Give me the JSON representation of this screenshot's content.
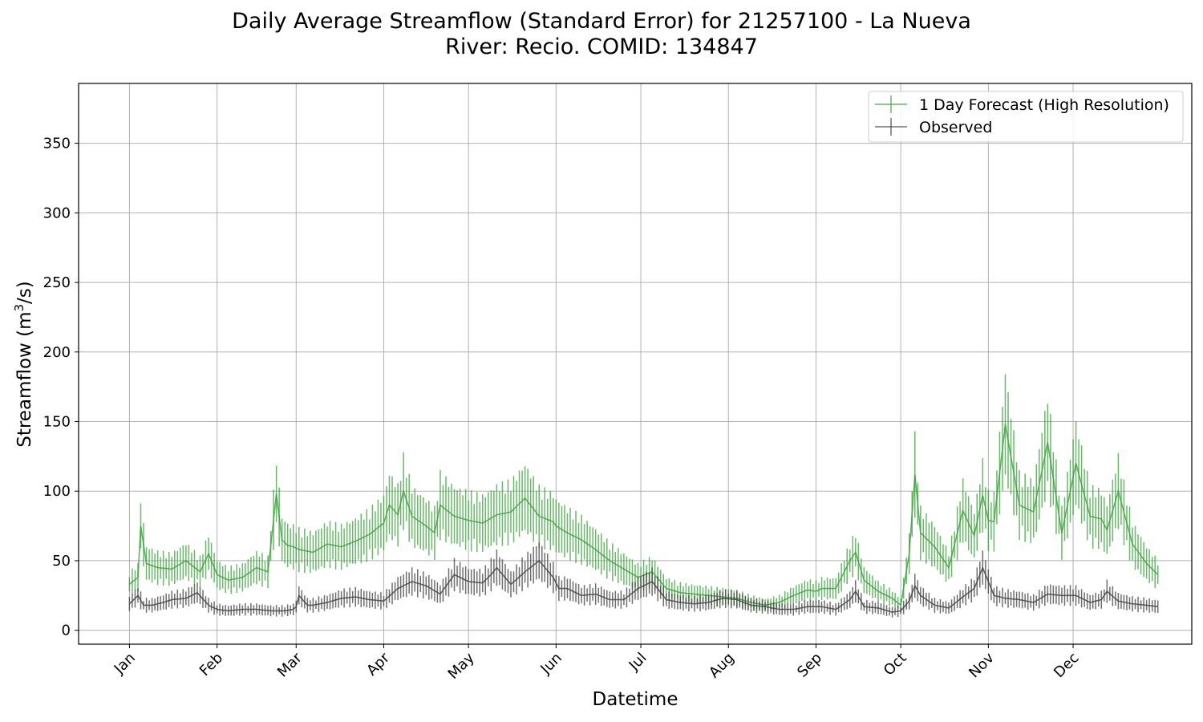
{
  "chart_data": {
    "type": "line",
    "title": "Daily Average Streamflow (Standard Error) for 21257100 - La Nueva",
    "subtitle": "River: Recio. COMID: 134847",
    "xlabel": "Datetime",
    "ylabel_prefix": "Streamflow (m",
    "ylabel_sup": "3",
    "ylabel_suffix": "/s)",
    "ylim": [
      -10,
      393
    ],
    "xlim_day": [
      -18,
      376
    ],
    "yticks": [
      0,
      50,
      100,
      150,
      200,
      250,
      300,
      350
    ],
    "xticks": [
      {
        "label": "Jan",
        "day": 0
      },
      {
        "label": "Feb",
        "day": 31
      },
      {
        "label": "Mar",
        "day": 59
      },
      {
        "label": "Apr",
        "day": 90
      },
      {
        "label": "May",
        "day": 120
      },
      {
        "label": "Jun",
        "day": 151
      },
      {
        "label": "Jul",
        "day": 181
      },
      {
        "label": "Aug",
        "day": 212
      },
      {
        "label": "Sep",
        "day": 243
      },
      {
        "label": "Oct",
        "day": 273
      },
      {
        "label": "Nov",
        "day": 304
      },
      {
        "label": "Dec",
        "day": 334
      }
    ],
    "grid": true,
    "legend_position": "top-right",
    "series": [
      {
        "name": "1 Day Forecast (High Resolution)",
        "color": "#3a9f3a",
        "x": [
          0,
          3,
          4,
          6,
          10,
          15,
          20,
          25,
          28,
          31,
          35,
          40,
          45,
          49,
          52,
          54,
          56,
          58,
          60,
          65,
          70,
          75,
          80,
          85,
          90,
          92,
          95,
          97,
          100,
          105,
          108,
          110,
          115,
          120,
          125,
          130,
          135,
          140,
          145,
          150,
          151,
          155,
          160,
          165,
          170,
          175,
          180,
          185,
          190,
          195,
          200,
          205,
          210,
          215,
          220,
          225,
          230,
          235,
          240,
          243,
          245,
          250,
          255,
          257,
          260,
          265,
          270,
          273,
          276,
          278,
          280,
          285,
          290,
          295,
          299,
          302,
          304,
          306,
          310,
          315,
          320,
          325,
          330,
          335,
          340,
          344,
          346,
          350,
          355,
          360,
          364
        ],
        "y": [
          33,
          38,
          75,
          48,
          45,
          44,
          50,
          42,
          55,
          40,
          36,
          38,
          45,
          42,
          98,
          65,
          61,
          60,
          58,
          56,
          62,
          60,
          64,
          69,
          77,
          90,
          83,
          100,
          82,
          75,
          70,
          90,
          82,
          79,
          77,
          83,
          85,
          95,
          82,
          78,
          75,
          70,
          65,
          58,
          50,
          44,
          38,
          42,
          30,
          27,
          26,
          25,
          24,
          23,
          20,
          18,
          20,
          25,
          29,
          28,
          30,
          30,
          50,
          56,
          36,
          28,
          23,
          18,
          55,
          112,
          70,
          60,
          45,
          86,
          68,
          97,
          79,
          78,
          148,
          90,
          85,
          135,
          70,
          120,
          82,
          80,
          72,
          100,
          62,
          48,
          40
        ]
      },
      {
        "name": "Observed",
        "color": "#404040",
        "x": [
          0,
          3,
          5,
          8,
          12,
          15,
          20,
          24,
          28,
          31,
          35,
          40,
          45,
          50,
          55,
          58,
          59,
          60,
          63,
          65,
          70,
          75,
          80,
          85,
          90,
          95,
          100,
          105,
          110,
          115,
          120,
          125,
          128,
          130,
          135,
          140,
          145,
          150,
          152,
          155,
          160,
          165,
          170,
          175,
          180,
          185,
          190,
          195,
          200,
          205,
          210,
          215,
          220,
          225,
          230,
          235,
          240,
          245,
          250,
          255,
          257,
          260,
          265,
          270,
          273,
          276,
          278,
          280,
          285,
          290,
          295,
          299,
          302,
          304,
          306,
          310,
          315,
          320,
          325,
          330,
          335,
          340,
          344,
          346,
          350,
          355,
          360,
          364
        ],
        "y": [
          19,
          25,
          18,
          18,
          20,
          22,
          23,
          27,
          18,
          15,
          14,
          15,
          15,
          14,
          14,
          15,
          17,
          25,
          18,
          18,
          20,
          23,
          24,
          22,
          21,
          30,
          35,
          32,
          26,
          40,
          35,
          34,
          40,
          45,
          33,
          42,
          50,
          38,
          30,
          30,
          25,
          26,
          22,
          22,
          30,
          35,
          22,
          20,
          19,
          20,
          23,
          22,
          18,
          17,
          15,
          15,
          17,
          17,
          15,
          22,
          28,
          17,
          16,
          13,
          14,
          21,
          32,
          25,
          18,
          16,
          24,
          30,
          45,
          35,
          25,
          23,
          22,
          20,
          26,
          25,
          25,
          20,
          22,
          28,
          21,
          19,
          18,
          17
        ]
      }
    ]
  }
}
